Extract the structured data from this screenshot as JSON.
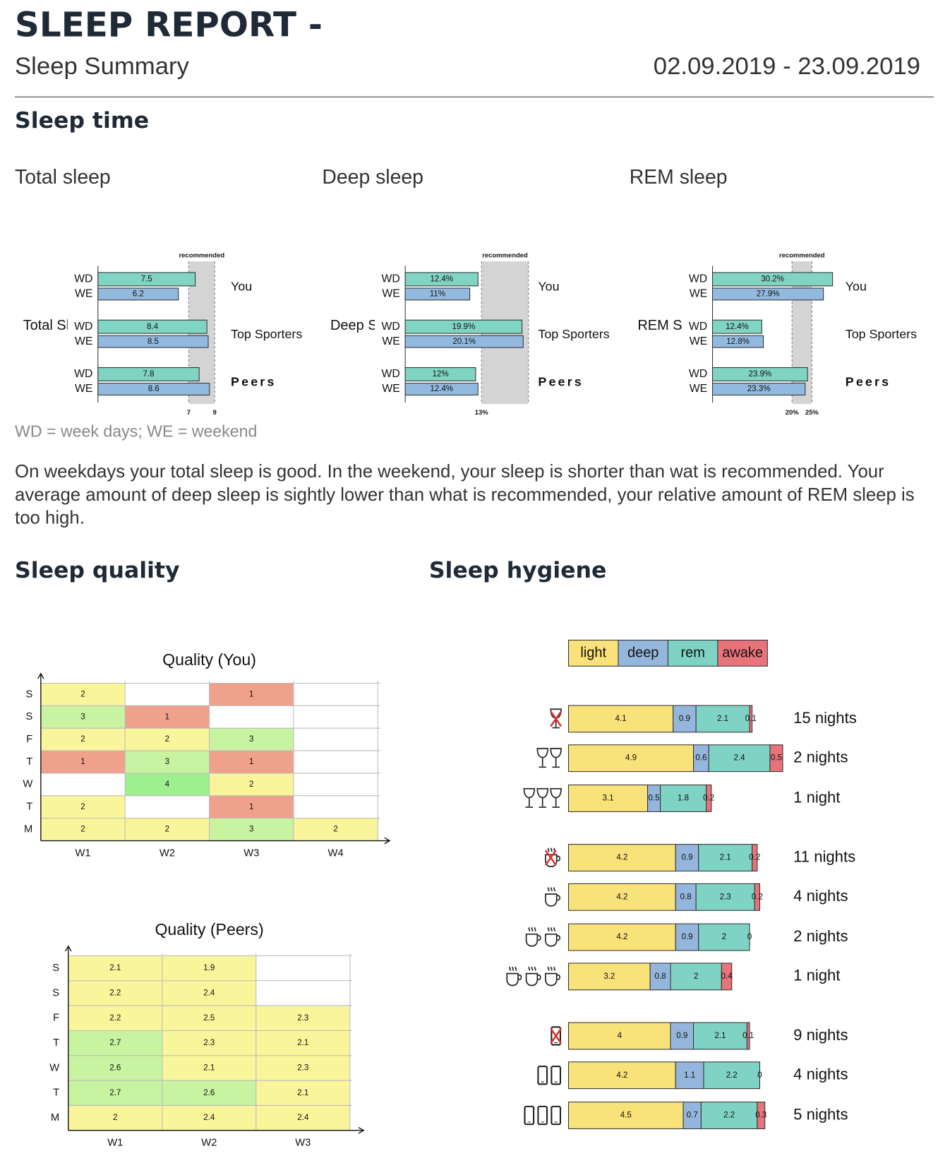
{
  "header": {
    "title": "SLEEP REPORT -",
    "subtitle": "Sleep Summary",
    "date_range": "02.09.2019 - 23.09.2019"
  },
  "sleep_time": {
    "heading": "Sleep time",
    "charts": [
      {
        "type": "bar",
        "orientation": "horizontal",
        "title": "Total sleep",
        "y_label": "Total Sleep",
        "recommended_label": "recommended",
        "categories": [
          "You",
          "Top Sporters",
          "Peers"
        ],
        "series": [
          {
            "name": "WD",
            "color": "#80d4c4",
            "values": [
              7.5,
              8.4,
              7.8
            ]
          },
          {
            "name": "WE",
            "color": "#93bade",
            "values": [
              6.2,
              8.5,
              8.6
            ]
          }
        ],
        "xlim": [
          0,
          9.5
        ],
        "xticks": [
          7,
          9
        ],
        "recommended_range": [
          7,
          9
        ]
      },
      {
        "type": "bar",
        "orientation": "horizontal",
        "title": "Deep sleep",
        "y_label": "Deep Sleep",
        "recommended_label": "recommended",
        "categories": [
          "You",
          "Top Sporters",
          "Peers"
        ],
        "series": [
          {
            "name": "WD",
            "color": "#80d4c4",
            "values": [
              12.4,
              19.9,
              12
            ],
            "value_labels": [
              "12.4%",
              "19.9%",
              "12%"
            ]
          },
          {
            "name": "WE",
            "color": "#93bade",
            "values": [
              11,
              20.1,
              12.4
            ],
            "value_labels": [
              "11%",
              "20.1%",
              "12.4%"
            ]
          }
        ],
        "xlim": [
          0,
          21
        ],
        "xticks": [
          {
            "value": 13,
            "label": "13%"
          }
        ],
        "recommended_range": [
          13,
          21
        ]
      },
      {
        "type": "bar",
        "orientation": "horizontal",
        "title": "REM sleep",
        "y_label": "REM Sleep",
        "recommended_label": "recommended",
        "categories": [
          "You",
          "Top Sporters",
          "Peers"
        ],
        "series": [
          {
            "name": "WD",
            "color": "#80d4c4",
            "values": [
              30.2,
              12.4,
              23.9
            ],
            "value_labels": [
              "30.2%",
              "12.4%",
              "23.9%"
            ]
          },
          {
            "name": "WE",
            "color": "#93bade",
            "values": [
              27.9,
              12.8,
              23.3
            ],
            "value_labels": [
              "27.9%",
              "12.8%",
              "23.3%"
            ]
          }
        ],
        "xlim": [
          0,
          31
        ],
        "xticks": [
          {
            "value": 20,
            "label": "20%"
          },
          {
            "value": 25,
            "label": "25%"
          }
        ],
        "recommended_range": [
          20,
          25
        ]
      }
    ],
    "note": "WD = week days; WE = weekend",
    "summary": "On weekdays your total sleep is good. In the weekend, your sleep is shorter than wat is recommended. Your average amount of deep sleep is sightly lower than what is recommended, your relative amount of REM sleep is too high."
  },
  "sleep_quality": {
    "heading": "Sleep quality",
    "color_scale": [
      {
        "min": 0,
        "color": "#f0a18b"
      },
      {
        "min": 1.5,
        "color": "#f9f59b"
      },
      {
        "min": 2.55,
        "color": "#c8f3a1"
      },
      {
        "min": 3.5,
        "color": "#9ef08f"
      }
    ],
    "charts": [
      {
        "type": "heatmap",
        "title": "Quality (You)",
        "x_categories": [
          "W1",
          "W2",
          "W3",
          "W4"
        ],
        "y_categories": [
          "S",
          "S",
          "F",
          "T",
          "W",
          "T",
          "M"
        ],
        "values": [
          [
            2,
            null,
            1,
            null
          ],
          [
            3,
            1,
            null,
            null
          ],
          [
            2,
            2,
            3,
            null
          ],
          [
            1,
            3,
            1,
            null
          ],
          [
            null,
            4,
            2,
            null
          ],
          [
            2,
            null,
            1,
            null
          ],
          [
            2,
            2,
            3,
            2
          ]
        ]
      },
      {
        "type": "heatmap",
        "title": "Quality (Peers)",
        "x_categories": [
          "W1",
          "W2",
          "W3"
        ],
        "y_categories": [
          "S",
          "S",
          "F",
          "T",
          "W",
          "T",
          "M"
        ],
        "values": [
          [
            2.1,
            1.9,
            null
          ],
          [
            2.2,
            2.4,
            null
          ],
          [
            2.2,
            2.5,
            2.3
          ],
          [
            2.7,
            2.3,
            2.1
          ],
          [
            2.6,
            2.1,
            2.3
          ],
          [
            2.7,
            2.6,
            2.1
          ],
          [
            2,
            2.4,
            2.4
          ]
        ]
      }
    ]
  },
  "sleep_hygiene": {
    "heading": "Sleep hygiene",
    "chart": {
      "type": "bar",
      "orientation": "horizontal",
      "stacked": true,
      "categories": [
        "15 nights",
        "2 nights",
        "1 night",
        "11 nights",
        "4 nights",
        "2 nights",
        "1 night",
        "9 nights",
        "4 nights",
        "5 nights"
      ],
      "series": [
        {
          "name": "light",
          "color": "#f9e27a",
          "values": [
            4.1,
            4.9,
            3.1,
            4.2,
            4.2,
            4.2,
            3.2,
            4,
            4.2,
            4.5
          ]
        },
        {
          "name": "deep",
          "color": "#95b6dc",
          "values": [
            0.9,
            0.6,
            0.5,
            0.9,
            0.8,
            0.9,
            0.8,
            0.9,
            1.1,
            0.7
          ]
        },
        {
          "name": "rem",
          "color": "#7fd3c4",
          "values": [
            2.1,
            2.4,
            1.8,
            2.1,
            2.3,
            2,
            2,
            2.1,
            2.2,
            2.2
          ]
        },
        {
          "name": "awake",
          "color": "#e8737b",
          "values": [
            0.1,
            0.5,
            0.2,
            0.2,
            0.2,
            0,
            0.4,
            0.1,
            0,
            0.3
          ]
        }
      ],
      "xlim": [
        0,
        8.5
      ]
    }
  }
}
